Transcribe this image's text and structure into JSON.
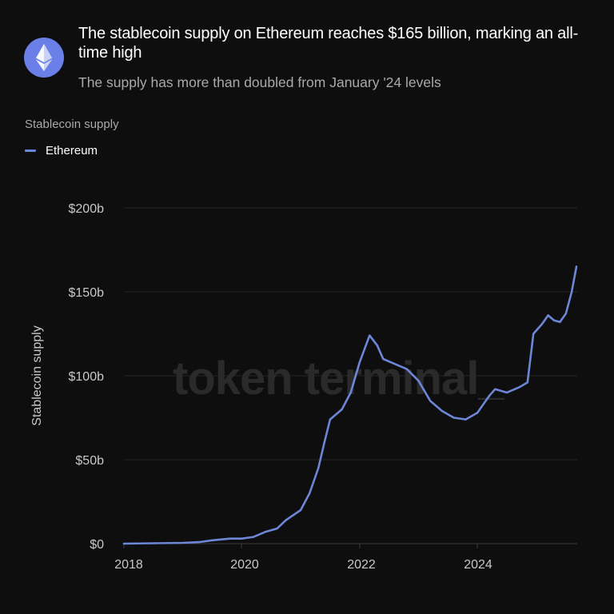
{
  "header": {
    "icon": "ethereum-logo-icon",
    "title": "The stablecoin supply on Ethereum reaches $165 billion, marking an all-time high",
    "subtitle": "The supply has more than doubled from January '24 levels"
  },
  "metric_label": "Stablecoin supply",
  "legend": [
    {
      "label": "Ethereum",
      "color": "#6e86d6"
    }
  ],
  "watermark": "token terminal_",
  "colors": {
    "background": "#0e0e0f",
    "line": "#6e86d6",
    "grid": "#262627",
    "logo": "#6a80e8"
  },
  "chart_data": {
    "type": "line",
    "title": "The stablecoin supply on Ethereum reaches $165 billion, marking an all-time high",
    "subtitle": "The supply has more than doubled from January '24 levels",
    "xlabel": "",
    "ylabel": "Stablecoin supply",
    "y_ticks": [
      "$0",
      "$50b",
      "$100b",
      "$150b",
      "$200b"
    ],
    "x_ticks": [
      "2018",
      "2020",
      "2022",
      "2024"
    ],
    "ylim": [
      0,
      200
    ],
    "grid": true,
    "legend_position": "top-left",
    "series": [
      {
        "name": "Ethereum",
        "unit": "USD billions",
        "x": [
          2018.0,
          2019.0,
          2019.3,
          2019.5,
          2019.8,
          2020.0,
          2020.2,
          2020.4,
          2020.6,
          2020.75,
          2021.0,
          2021.15,
          2021.3,
          2021.4,
          2021.5,
          2021.7,
          2021.85,
          2022.0,
          2022.17,
          2022.3,
          2022.4,
          2022.6,
          2022.8,
          2023.0,
          2023.2,
          2023.4,
          2023.6,
          2023.8,
          2024.0,
          2024.2,
          2024.3,
          2024.5,
          2024.7,
          2024.85,
          2024.95,
          2025.1,
          2025.2,
          2025.3,
          2025.4,
          2025.5,
          2025.6,
          2025.68
        ],
        "values": [
          0,
          0.5,
          1,
          2,
          3,
          3,
          4,
          7,
          9,
          14,
          20,
          30,
          45,
          60,
          74,
          80,
          90,
          108,
          124,
          118,
          110,
          107,
          104,
          97,
          85,
          79,
          75,
          74,
          78,
          88,
          92,
          90,
          93,
          96,
          125,
          131,
          136,
          133,
          132,
          137,
          150,
          165
        ]
      }
    ]
  }
}
